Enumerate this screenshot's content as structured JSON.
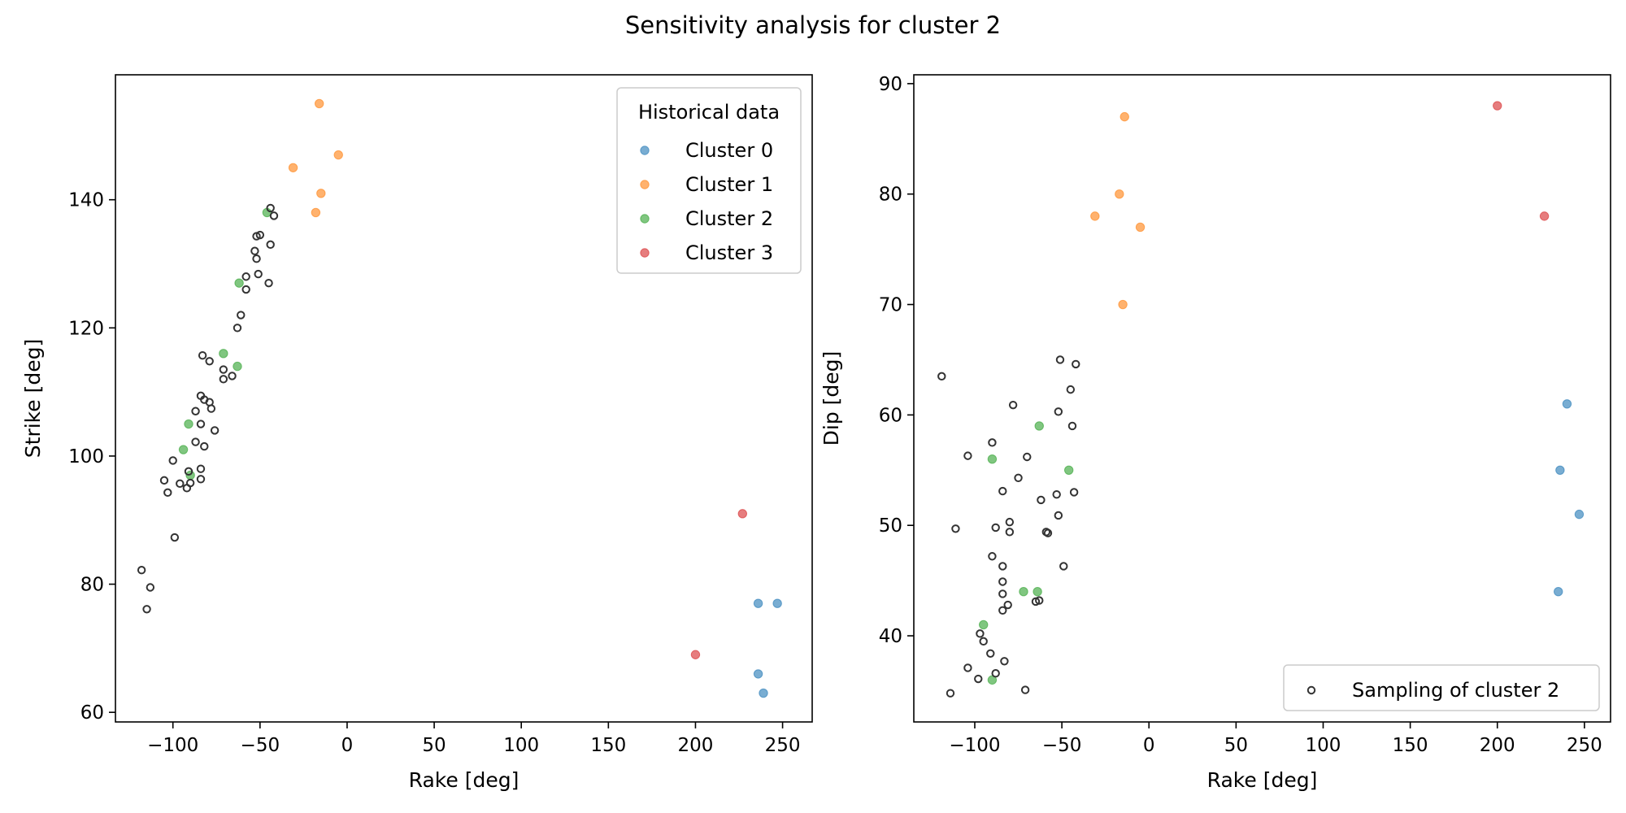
{
  "figure_title": "Sensitivity analysis for cluster 2",
  "chart_data": [
    {
      "type": "scatter",
      "title": "",
      "xlabel": "Rake [deg]",
      "ylabel": "Strike [deg]",
      "xlim": [
        -133,
        267
      ],
      "ylim": [
        58.5,
        159.5
      ],
      "xticks": [
        -100,
        -50,
        0,
        50,
        100,
        150,
        200,
        250
      ],
      "yticks": [
        60,
        80,
        100,
        120,
        140
      ],
      "grid": false,
      "legend": {
        "title": "Historical data",
        "placement": "top-right",
        "entries": [
          "Cluster 0",
          "Cluster 1",
          "Cluster 2",
          "Cluster 3"
        ]
      },
      "series": [
        {
          "name": "Cluster 0",
          "color": "#1f77b4",
          "marker": "filled",
          "points": [
            [
              236,
              77
            ],
            [
              247,
              77
            ],
            [
              236,
              66
            ],
            [
              239,
              63
            ]
          ]
        },
        {
          "name": "Cluster 1",
          "color": "#ff7f0e",
          "marker": "filled",
          "points": [
            [
              -16,
              155
            ],
            [
              -5,
              147
            ],
            [
              -31,
              145
            ],
            [
              -15,
              141
            ],
            [
              -18,
              138
            ]
          ]
        },
        {
          "name": "Cluster 2",
          "color": "#2ca02c",
          "marker": "filled",
          "points": [
            [
              -46,
              138
            ],
            [
              -62,
              127
            ],
            [
              -71,
              116
            ],
            [
              -63,
              114
            ],
            [
              -91,
              105
            ],
            [
              -94,
              101
            ],
            [
              -90,
              97
            ]
          ]
        },
        {
          "name": "Cluster 3",
          "color": "#d62728",
          "marker": "filled",
          "points": [
            [
              227,
              91
            ],
            [
              200,
              69
            ]
          ]
        },
        {
          "name": "",
          "color": "#333333",
          "marker": "open",
          "points": [
            [
              -44,
              138.7
            ],
            [
              -42,
              137.5
            ],
            [
              -44,
              133
            ],
            [
              -50,
              134.5
            ],
            [
              -52,
              134.3
            ],
            [
              -53,
              132
            ],
            [
              -52,
              130.8
            ],
            [
              -51,
              128.4
            ],
            [
              -58,
              128
            ],
            [
              -45,
              127
            ],
            [
              -58,
              126
            ],
            [
              -61,
              122
            ],
            [
              -63,
              120
            ],
            [
              -83,
              115.7
            ],
            [
              -79,
              114.8
            ],
            [
              -71,
              113.5
            ],
            [
              -66,
              112.5
            ],
            [
              -71,
              112
            ],
            [
              -84,
              109.4
            ],
            [
              -82,
              108.8
            ],
            [
              -79,
              108.4
            ],
            [
              -78,
              107.4
            ],
            [
              -87,
              107
            ],
            [
              -84,
              105
            ],
            [
              -76,
              104
            ],
            [
              -87,
              102.2
            ],
            [
              -82,
              101.5
            ],
            [
              -100,
              99.3
            ],
            [
              -84,
              98
            ],
            [
              -91,
              97.6
            ],
            [
              -84,
              96.4
            ],
            [
              -105,
              96.2
            ],
            [
              -90,
              95.8
            ],
            [
              -96,
              95.7
            ],
            [
              -92,
              95
            ],
            [
              -103,
              94.3
            ],
            [
              -99,
              87.3
            ],
            [
              -118,
              82.2
            ],
            [
              -113,
              79.5
            ],
            [
              -115,
              76.1
            ]
          ]
        }
      ]
    },
    {
      "type": "scatter",
      "title": "",
      "xlabel": "Rake [deg]",
      "ylabel": "Dip [deg]",
      "xlim": [
        -135,
        265
      ],
      "ylim": [
        32.2,
        90.8
      ],
      "xticks": [
        -100,
        -50,
        0,
        50,
        100,
        150,
        200,
        250
      ],
      "yticks": [
        40,
        50,
        60,
        70,
        80,
        90
      ],
      "grid": false,
      "legend": {
        "title": "",
        "placement": "bottom-right",
        "entries": [
          "Sampling of cluster 2"
        ]
      },
      "series": [
        {
          "name": "",
          "color": "#1f77b4",
          "marker": "filled",
          "points": [
            [
              240,
              61
            ],
            [
              236,
              55
            ],
            [
              247,
              51
            ],
            [
              235,
              44
            ]
          ]
        },
        {
          "name": "",
          "color": "#ff7f0e",
          "marker": "filled",
          "points": [
            [
              -14,
              87
            ],
            [
              -17,
              80
            ],
            [
              -31,
              78
            ],
            [
              -5,
              77
            ],
            [
              -15,
              70
            ]
          ]
        },
        {
          "name": "",
          "color": "#2ca02c",
          "marker": "filled",
          "points": [
            [
              -63,
              59
            ],
            [
              -90,
              56
            ],
            [
              -46,
              55
            ],
            [
              -72,
              44
            ],
            [
              -64,
              44
            ],
            [
              -95,
              41
            ],
            [
              -90,
              36
            ]
          ]
        },
        {
          "name": "",
          "color": "#d62728",
          "marker": "filled",
          "points": [
            [
              200,
              88
            ],
            [
              227,
              78
            ]
          ]
        },
        {
          "name": "Sampling of cluster 2",
          "color": "#333333",
          "marker": "open",
          "points": [
            [
              -119,
              63.5
            ],
            [
              -51,
              65
            ],
            [
              -42,
              64.6
            ],
            [
              -45,
              62.3
            ],
            [
              -78,
              60.9
            ],
            [
              -52,
              60.3
            ],
            [
              -44,
              59
            ],
            [
              -90,
              57.5
            ],
            [
              -104,
              56.3
            ],
            [
              -70,
              56.2
            ],
            [
              -75,
              54.3
            ],
            [
              -84,
              53.1
            ],
            [
              -80,
              50.3
            ],
            [
              -53,
              52.8
            ],
            [
              -62,
              52.3
            ],
            [
              -43,
              53
            ],
            [
              -52,
              50.9
            ],
            [
              -111,
              49.7
            ],
            [
              -88,
              49.8
            ],
            [
              -80,
              49.4
            ],
            [
              -59,
              49.4
            ],
            [
              -58,
              49.3
            ],
            [
              -90,
              47.2
            ],
            [
              -84,
              46.3
            ],
            [
              -49,
              46.3
            ],
            [
              -84,
              44.9
            ],
            [
              -84,
              43.8
            ],
            [
              -65,
              43.1
            ],
            [
              -63,
              43.2
            ],
            [
              -81,
              42.8
            ],
            [
              -84,
              42.3
            ],
            [
              -97,
              40.2
            ],
            [
              -95,
              39.5
            ],
            [
              -91,
              38.4
            ],
            [
              -83,
              37.7
            ],
            [
              -104,
              37.1
            ],
            [
              -88,
              36.6
            ],
            [
              -98,
              36.1
            ],
            [
              -71,
              35.1
            ],
            [
              -114,
              34.8
            ]
          ]
        }
      ]
    }
  ]
}
